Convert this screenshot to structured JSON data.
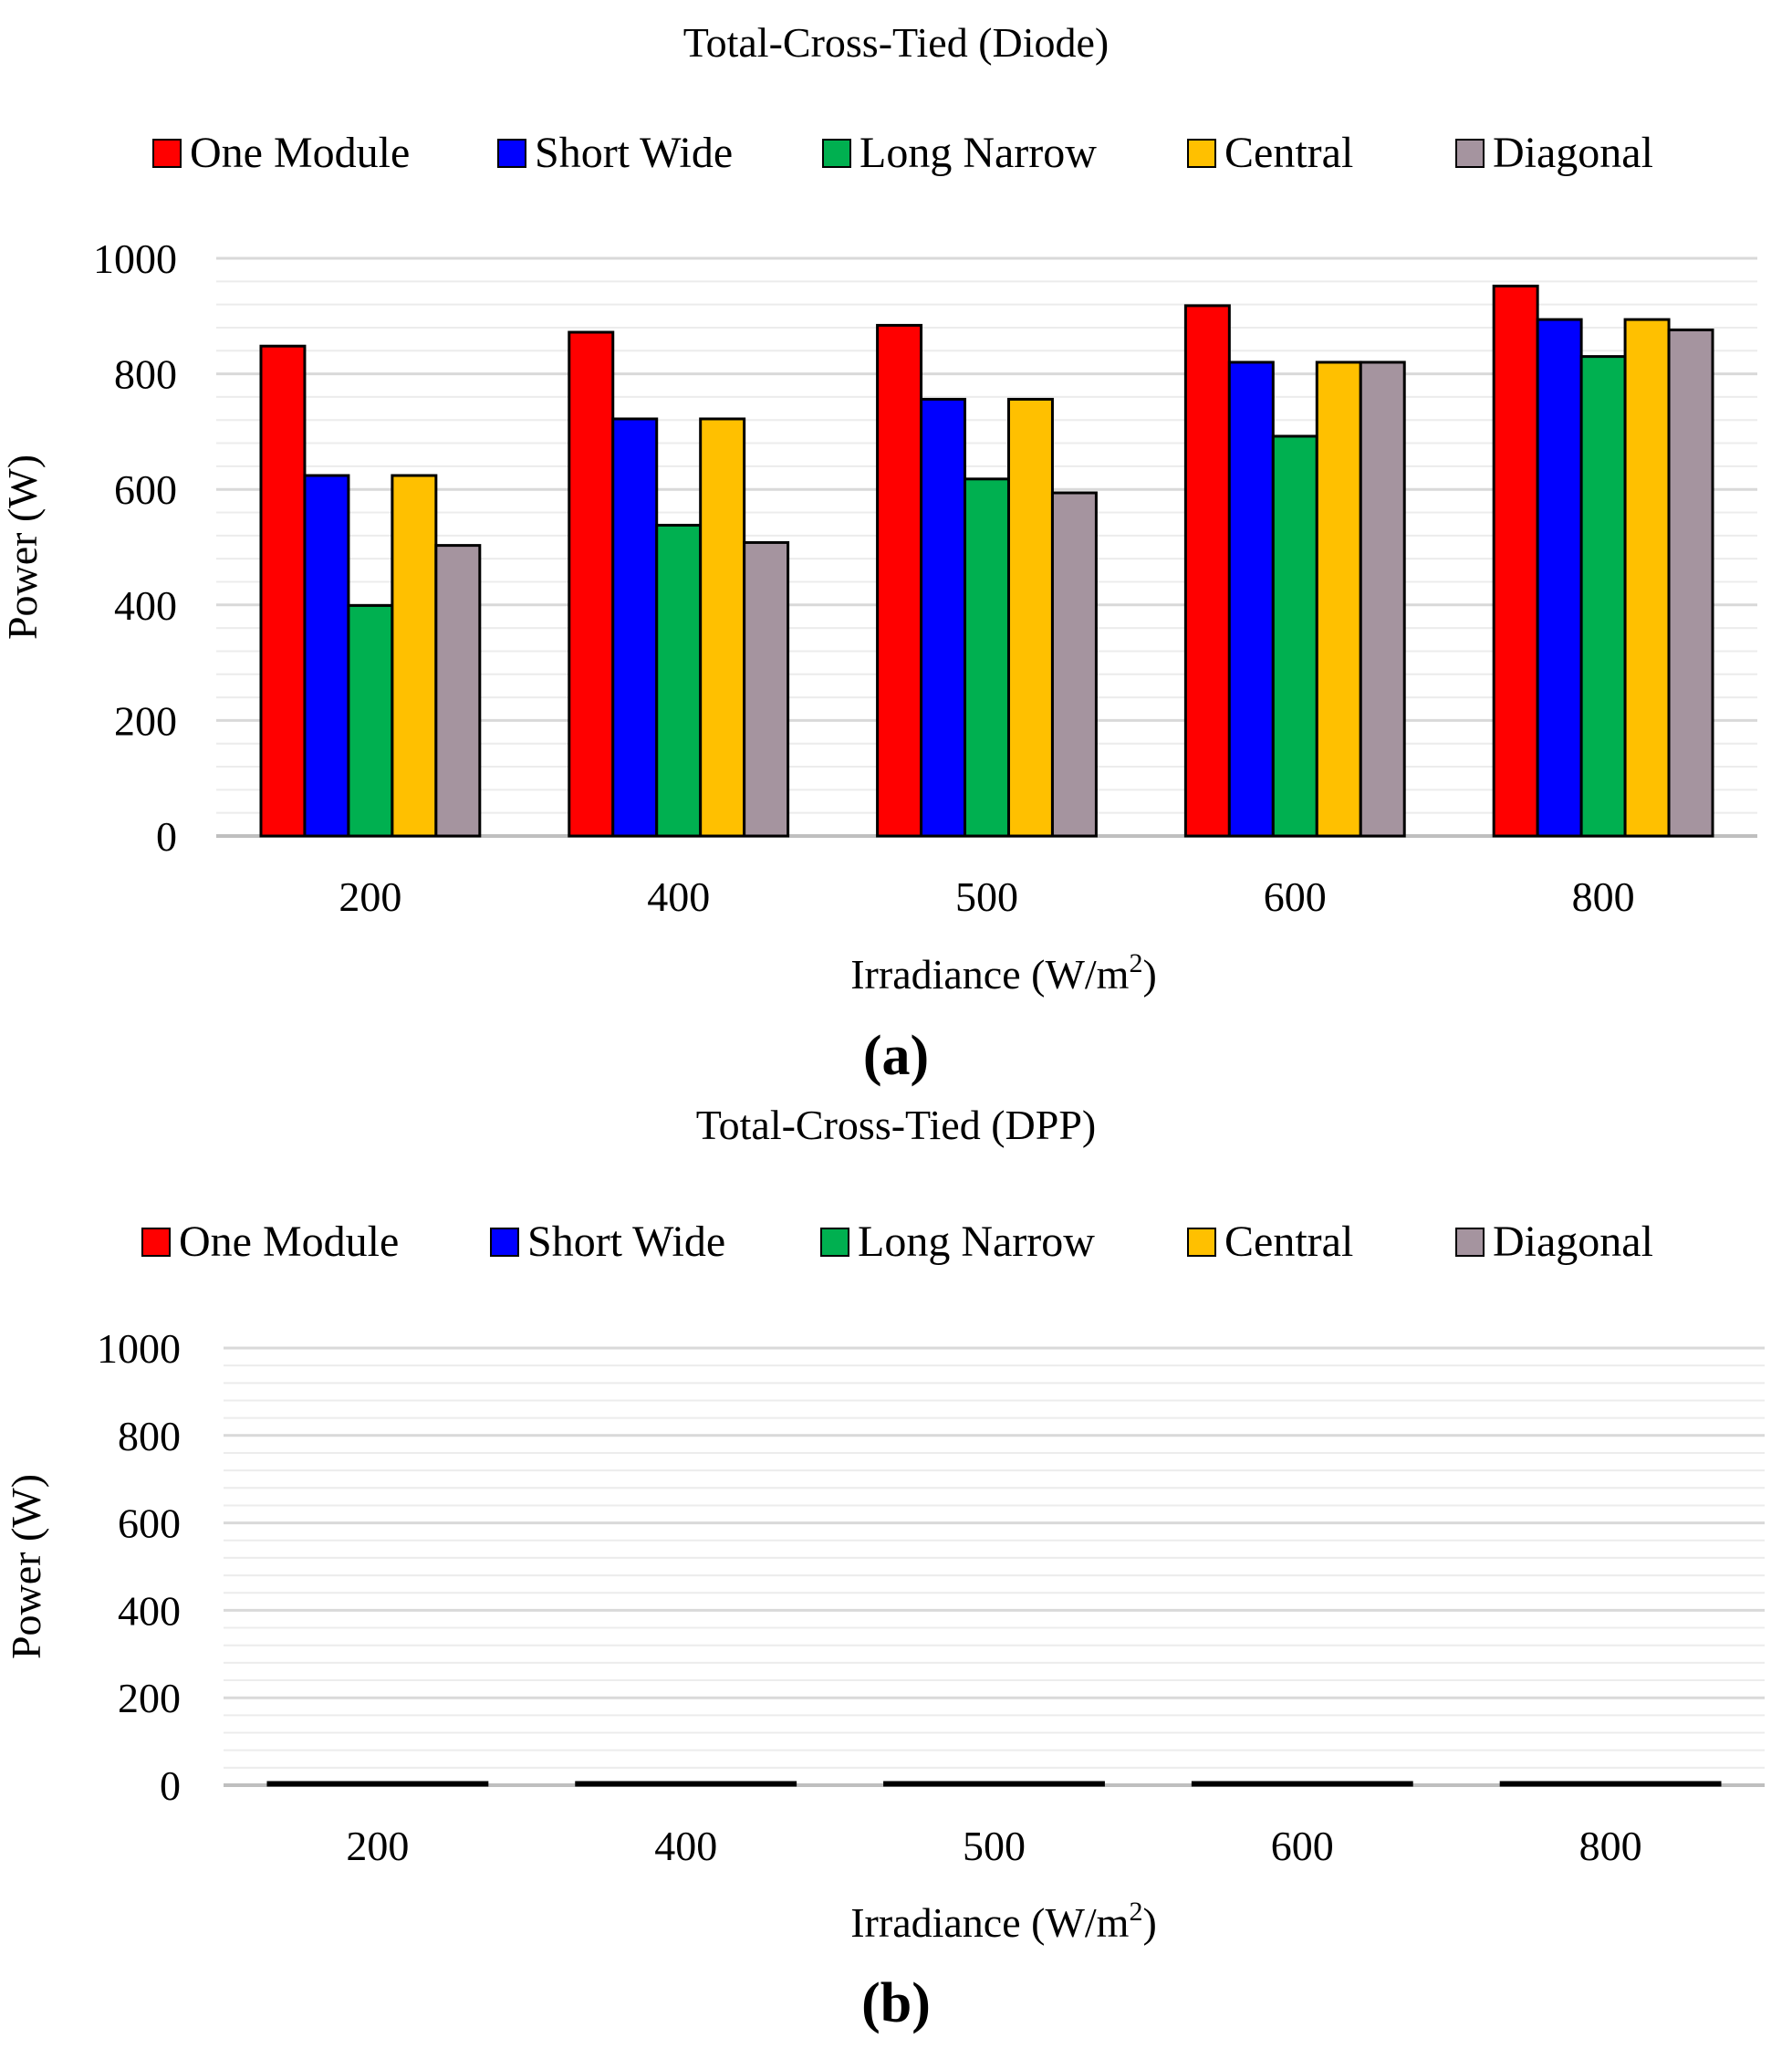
{
  "chart_data": [
    {
      "type": "bar",
      "title": "Total-Cross-Tied  (Diode)",
      "xlabel": "Irradiance  (W/m",
      "xlabel_sup": "2",
      "xlabel_end": ")",
      "ylabel": "Power (W)",
      "categories": [
        "200",
        "400",
        "500",
        "600",
        "800"
      ],
      "ylim": [
        0,
        1000
      ],
      "yticks": [
        "0",
        "200",
        "400",
        "600",
        "800",
        "1000"
      ],
      "grid": true,
      "legend_position": "top",
      "series": [
        {
          "name": "One Module",
          "color": "#FF0000",
          "values": [
            848,
            872,
            884,
            918,
            952
          ]
        },
        {
          "name": "Short Wide",
          "color": "#0000FF",
          "values": [
            624,
            722,
            756,
            820,
            894
          ]
        },
        {
          "name": "Long Narrow",
          "color": "#00B050",
          "values": [
            399,
            538,
            618,
            692,
            830
          ]
        },
        {
          "name": "Central",
          "color": "#FFC000",
          "values": [
            624,
            722,
            756,
            820,
            894
          ]
        },
        {
          "name": "Diagonal",
          "color": "#A5949F",
          "values": [
            503,
            508,
            594,
            820,
            876
          ]
        }
      ],
      "caption": "(a)"
    },
    {
      "type": "bar",
      "title": "Total-Cross-Tied  (DPP)",
      "xlabel": "Irradiance  (W/m",
      "xlabel_sup": "2",
      "xlabel_end": ")",
      "ylabel": "Power (W)",
      "categories": [
        "200",
        "400",
        "500",
        "600",
        "800"
      ],
      "ylim": [
        0,
        1000
      ],
      "yticks": [
        "0",
        "200",
        "400",
        "600",
        "800",
        "1000"
      ],
      "grid": true,
      "legend_position": "top",
      "series": [
        {
          "name": "One Module",
          "color": "#FF0000",
          "values": [
            0,
            0,
            0,
            0,
            0
          ]
        },
        {
          "name": "Short Wide",
          "color": "#0000FF",
          "values": [
            0,
            0,
            0,
            0,
            0
          ]
        },
        {
          "name": "Long Narrow",
          "color": "#00B050",
          "values": [
            0,
            0,
            0,
            0,
            0
          ]
        },
        {
          "name": "Central",
          "color": "#FFC000",
          "values": [
            0,
            0,
            0,
            0,
            0
          ]
        },
        {
          "name": "Diagonal",
          "color": "#A5949F",
          "values": [
            0,
            0,
            0,
            0,
            0
          ]
        }
      ],
      "caption": "(b)"
    }
  ]
}
